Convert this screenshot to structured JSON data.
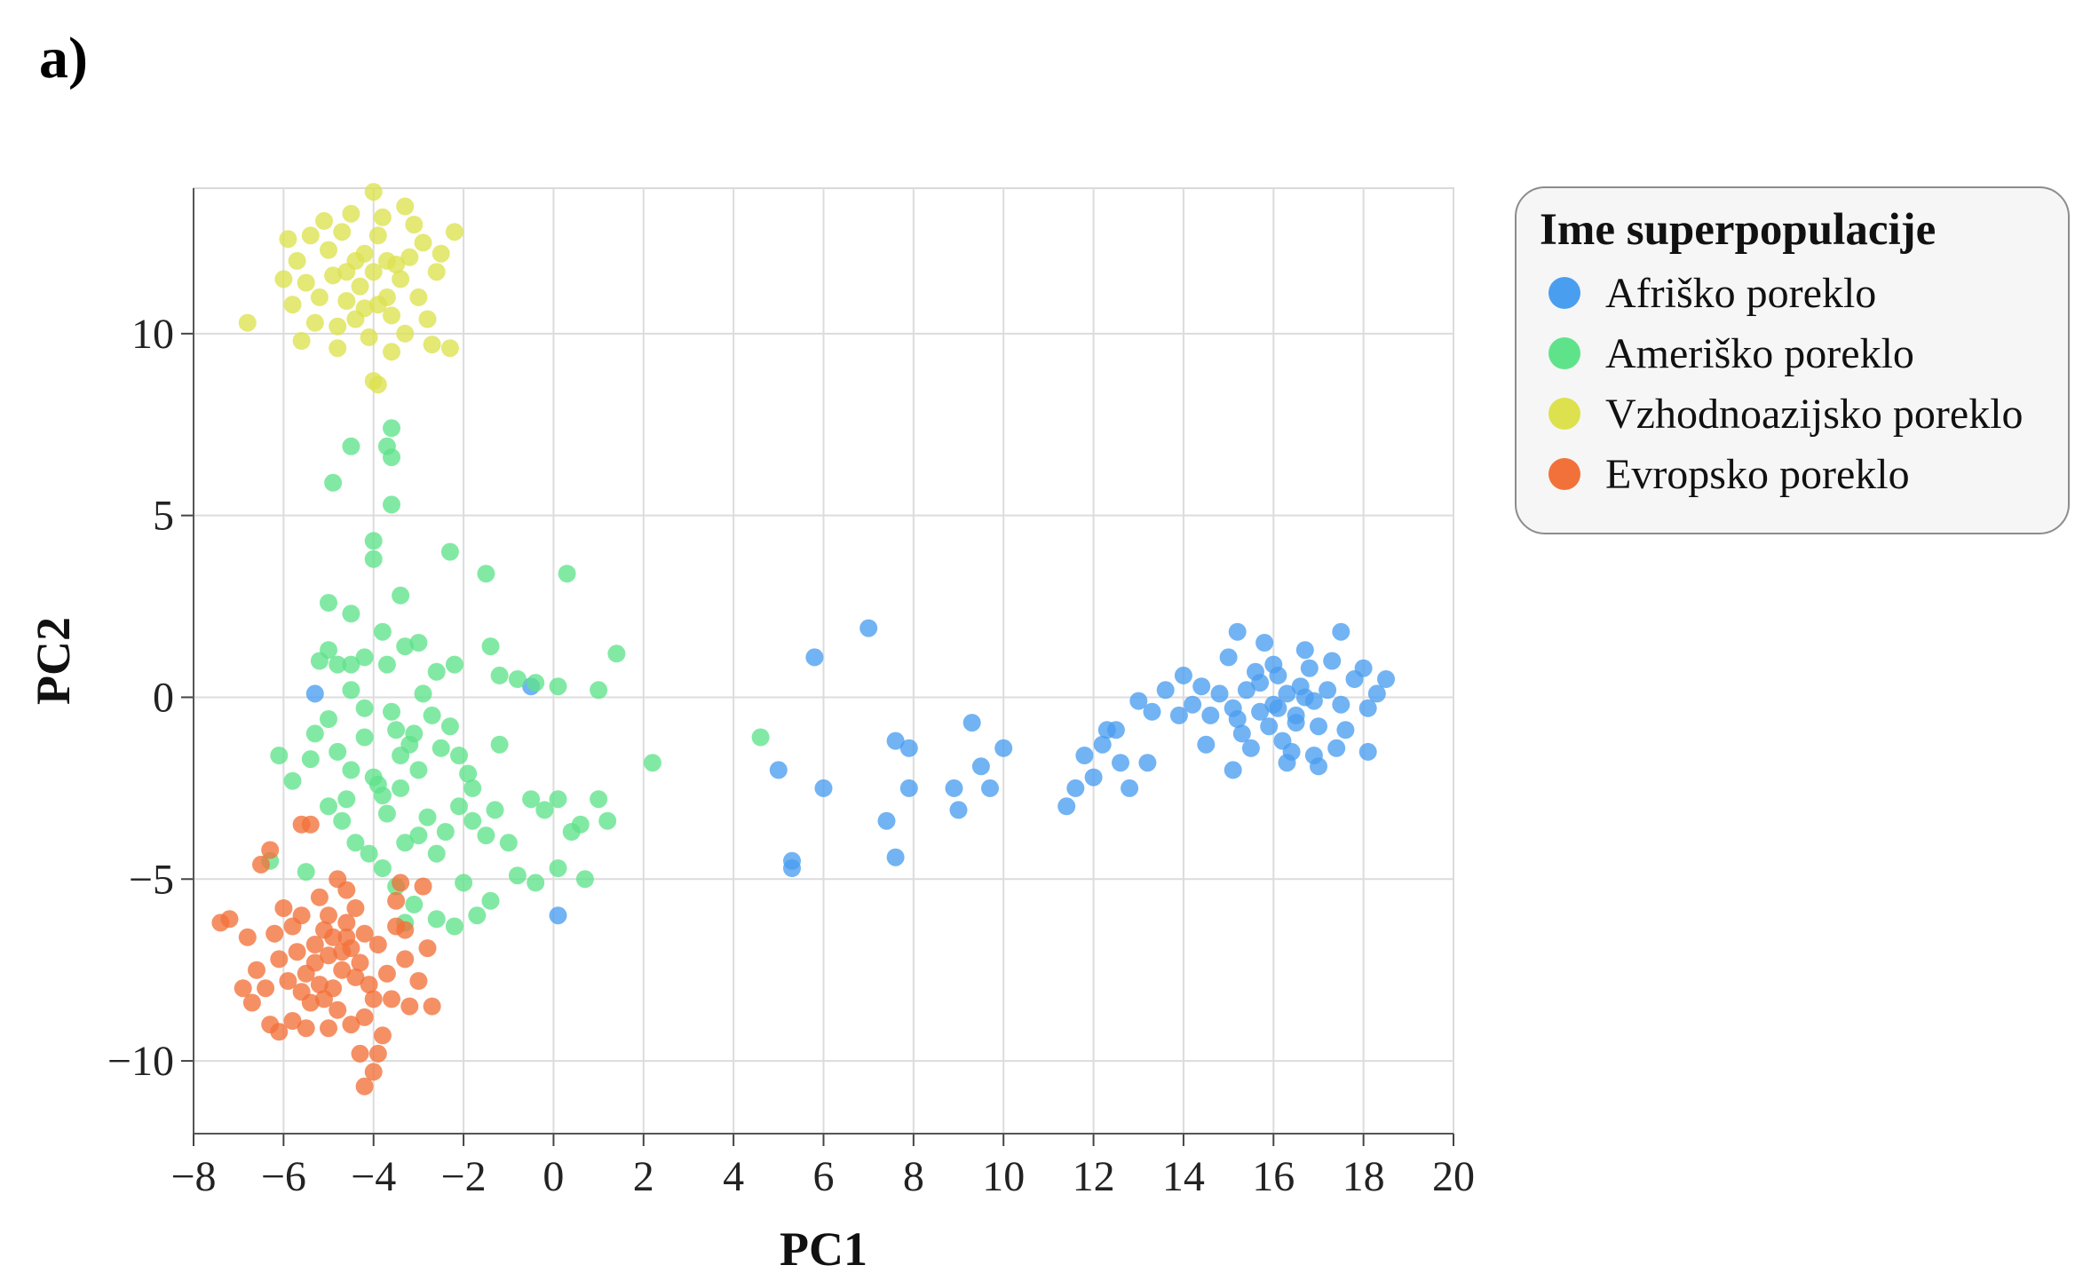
{
  "panel_label": "a)",
  "chart_data": {
    "type": "scatter",
    "title": "",
    "xlabel": "PC1",
    "ylabel": "PC2",
    "xlim": [
      -8,
      20
    ],
    "ylim": [
      -12,
      14
    ],
    "xticks": [
      -8,
      -6,
      -4,
      -2,
      0,
      2,
      4,
      6,
      8,
      10,
      12,
      14,
      16,
      18,
      20
    ],
    "yticks": [
      -10,
      -5,
      0,
      5,
      10
    ],
    "grid": true,
    "legend": {
      "title": "Ime superpopulacije",
      "placement": "right"
    },
    "series": [
      {
        "name": "Afriško poreklo",
        "color": "#4a9ef0",
        "points": [
          [
            16,
            -0.2
          ],
          [
            16.3,
            0.1
          ],
          [
            15.7,
            -0.4
          ],
          [
            16.6,
            0.3
          ],
          [
            15.4,
            0.2
          ],
          [
            16.9,
            -0.1
          ],
          [
            15.1,
            -0.3
          ],
          [
            16.1,
            0.6
          ],
          [
            15.9,
            -0.8
          ],
          [
            16.5,
            -0.5
          ],
          [
            17.2,
            0.2
          ],
          [
            14.8,
            0.1
          ],
          [
            15.6,
            0.7
          ],
          [
            16.8,
            0.8
          ],
          [
            17.5,
            -0.2
          ],
          [
            14.6,
            -0.5
          ],
          [
            15.3,
            -1.0
          ],
          [
            16.2,
            -1.2
          ],
          [
            17.0,
            -0.8
          ],
          [
            17.8,
            0.5
          ],
          [
            14.4,
            0.3
          ],
          [
            15.0,
            1.1
          ],
          [
            16.7,
            1.3
          ],
          [
            17.3,
            1.0
          ],
          [
            18.1,
            -0.3
          ],
          [
            14.2,
            -0.2
          ],
          [
            15.8,
            1.5
          ],
          [
            16.4,
            -1.5
          ],
          [
            17.6,
            -0.9
          ],
          [
            18.3,
            0.1
          ],
          [
            15.2,
            1.8
          ],
          [
            17.5,
            1.8
          ],
          [
            16.0,
            0.9
          ],
          [
            15.5,
            -1.4
          ],
          [
            16.9,
            -1.6
          ],
          [
            14.0,
            0.6
          ],
          [
            18.0,
            0.8
          ],
          [
            18.5,
            0.5
          ],
          [
            14.5,
            -1.3
          ],
          [
            15.1,
            -2.0
          ],
          [
            16.3,
            -1.8
          ],
          [
            17.0,
            -1.9
          ],
          [
            17.4,
            -1.4
          ],
          [
            18.1,
            -1.5
          ],
          [
            13.6,
            0.2
          ],
          [
            13.3,
            -0.4
          ],
          [
            13.9,
            -0.5
          ],
          [
            13.0,
            -0.1
          ],
          [
            12.5,
            -0.9
          ],
          [
            12.2,
            -1.3
          ],
          [
            11.8,
            -1.6
          ],
          [
            12.0,
            -2.2
          ],
          [
            11.6,
            -2.5
          ],
          [
            11.4,
            -3.0
          ],
          [
            12.8,
            -2.5
          ],
          [
            13.2,
            -1.8
          ],
          [
            12.6,
            -1.8
          ],
          [
            12.3,
            -0.9
          ],
          [
            7.0,
            1.9
          ],
          [
            5.8,
            1.1
          ],
          [
            5.0,
            -2.0
          ],
          [
            6.0,
            -2.5
          ],
          [
            5.3,
            -4.5
          ],
          [
            5.3,
            -4.7
          ],
          [
            7.4,
            -3.4
          ],
          [
            7.6,
            -4.4
          ],
          [
            7.6,
            -1.2
          ],
          [
            7.9,
            -1.4
          ],
          [
            7.9,
            -2.5
          ],
          [
            8.9,
            -2.5
          ],
          [
            9.0,
            -3.1
          ],
          [
            9.3,
            -0.7
          ],
          [
            9.5,
            -1.9
          ],
          [
            9.7,
            -2.5
          ],
          [
            10.0,
            -1.4
          ],
          [
            -5.3,
            0.1
          ],
          [
            -0.5,
            0.3
          ],
          [
            0.1,
            -6.0
          ],
          [
            15.7,
            0.4
          ],
          [
            16.5,
            -0.7
          ],
          [
            15.2,
            -0.6
          ],
          [
            16.1,
            -0.3
          ],
          [
            16.7,
            0.0
          ]
        ]
      },
      {
        "name": "Ameriško poreklo",
        "color": "#5fe38a",
        "points": [
          [
            -4.0,
            4.3
          ],
          [
            -4.0,
            3.8
          ],
          [
            -4.5,
            2.3
          ],
          [
            -3.8,
            1.8
          ],
          [
            -5.0,
            2.6
          ],
          [
            -3.4,
            2.8
          ],
          [
            -2.3,
            4.0
          ],
          [
            -1.5,
            3.4
          ],
          [
            0.3,
            3.4
          ],
          [
            -5.0,
            1.3
          ],
          [
            -5.2,
            1.0
          ],
          [
            -4.8,
            0.9
          ],
          [
            -4.5,
            0.9
          ],
          [
            -4.2,
            1.1
          ],
          [
            -3.7,
            0.9
          ],
          [
            -3.3,
            1.4
          ],
          [
            -3.0,
            1.5
          ],
          [
            -2.6,
            0.7
          ],
          [
            -2.2,
            0.9
          ],
          [
            -1.4,
            1.4
          ],
          [
            -1.2,
            0.6
          ],
          [
            -0.8,
            0.5
          ],
          [
            -0.4,
            0.4
          ],
          [
            0.1,
            0.3
          ],
          [
            1.0,
            0.2
          ],
          [
            1.4,
            1.2
          ],
          [
            2.2,
            -1.8
          ],
          [
            -4.5,
            0.2
          ],
          [
            -4.2,
            -0.3
          ],
          [
            -3.6,
            -0.4
          ],
          [
            -3.5,
            -0.9
          ],
          [
            -3.2,
            -1.3
          ],
          [
            -2.9,
            0.1
          ],
          [
            -2.7,
            -0.5
          ],
          [
            -2.3,
            -0.8
          ],
          [
            -2.1,
            -1.6
          ],
          [
            -1.8,
            -2.5
          ],
          [
            -1.2,
            -1.3
          ],
          [
            -5.0,
            -0.6
          ],
          [
            -5.3,
            -1.0
          ],
          [
            -5.4,
            -1.7
          ],
          [
            -4.8,
            -1.5
          ],
          [
            -4.5,
            -2.0
          ],
          [
            -4.0,
            -2.2
          ],
          [
            -3.8,
            -2.7
          ],
          [
            -3.4,
            -1.6
          ],
          [
            -3.0,
            -2.0
          ],
          [
            -2.8,
            -3.3
          ],
          [
            -2.4,
            -3.7
          ],
          [
            -2.1,
            -3.0
          ],
          [
            -1.8,
            -3.4
          ],
          [
            -1.5,
            -3.8
          ],
          [
            -1.3,
            -3.1
          ],
          [
            -1.0,
            -4.0
          ],
          [
            -0.5,
            -2.8
          ],
          [
            -0.2,
            -3.1
          ],
          [
            0.1,
            -2.8
          ],
          [
            0.4,
            -3.7
          ],
          [
            0.6,
            -3.5
          ],
          [
            1.0,
            -2.8
          ],
          [
            1.2,
            -3.4
          ],
          [
            0.7,
            -5.0
          ],
          [
            0.1,
            -4.7
          ],
          [
            -0.4,
            -5.1
          ],
          [
            -0.8,
            -4.9
          ],
          [
            -1.4,
            -5.6
          ],
          [
            -1.7,
            -6.0
          ],
          [
            -2.0,
            -5.1
          ],
          [
            -2.2,
            -6.3
          ],
          [
            -2.6,
            -6.1
          ],
          [
            -3.1,
            -5.7
          ],
          [
            -3.5,
            -5.2
          ],
          [
            -3.8,
            -4.7
          ],
          [
            -4.1,
            -4.3
          ],
          [
            -4.4,
            -4.0
          ],
          [
            -4.7,
            -3.4
          ],
          [
            -5.0,
            -3.0
          ],
          [
            -5.8,
            -2.3
          ],
          [
            -6.1,
            -1.6
          ],
          [
            -6.3,
            -4.5
          ],
          [
            -5.5,
            -4.8
          ],
          [
            -3.3,
            -4.0
          ],
          [
            -3.0,
            -3.8
          ],
          [
            -2.6,
            -4.3
          ],
          [
            -4.9,
            5.9
          ],
          [
            -4.5,
            6.9
          ],
          [
            -3.7,
            6.9
          ],
          [
            -3.6,
            7.4
          ],
          [
            -3.6,
            6.6
          ],
          [
            -3.6,
            5.3
          ],
          [
            4.6,
            -1.1
          ],
          [
            -4.6,
            -2.8
          ],
          [
            -3.9,
            -2.4
          ],
          [
            -3.4,
            -2.5
          ],
          [
            -4.2,
            -1.1
          ],
          [
            -3.1,
            -1.0
          ],
          [
            -1.9,
            -2.1
          ],
          [
            -2.5,
            -1.4
          ],
          [
            -3.7,
            -3.2
          ],
          [
            -3.3,
            -6.2
          ]
        ]
      },
      {
        "name": "Vzhodnoazijsko poreklo",
        "color": "#dde14e",
        "points": [
          [
            -4.3,
            11.3
          ],
          [
            -4.0,
            11.7
          ],
          [
            -4.6,
            10.9
          ],
          [
            -3.7,
            11.0
          ],
          [
            -4.9,
            11.6
          ],
          [
            -4.2,
            12.2
          ],
          [
            -3.4,
            11.5
          ],
          [
            -5.2,
            11.0
          ],
          [
            -4.4,
            10.4
          ],
          [
            -3.6,
            10.5
          ],
          [
            -5.0,
            12.3
          ],
          [
            -3.2,
            12.1
          ],
          [
            -4.7,
            12.8
          ],
          [
            -3.9,
            12.7
          ],
          [
            -5.5,
            11.4
          ],
          [
            -3.0,
            11.0
          ],
          [
            -5.3,
            10.3
          ],
          [
            -4.1,
            9.9
          ],
          [
            -3.3,
            10.0
          ],
          [
            -5.7,
            12.0
          ],
          [
            -2.9,
            12.5
          ],
          [
            -4.5,
            13.3
          ],
          [
            -3.8,
            13.2
          ],
          [
            -5.4,
            12.7
          ],
          [
            -3.1,
            13.0
          ],
          [
            -5.8,
            10.8
          ],
          [
            -2.8,
            10.4
          ],
          [
            -4.8,
            9.6
          ],
          [
            -3.6,
            9.5
          ],
          [
            -6.0,
            11.5
          ],
          [
            -2.6,
            11.7
          ],
          [
            -4.0,
            13.9
          ],
          [
            -2.5,
            12.2
          ],
          [
            -5.6,
            9.8
          ],
          [
            -2.7,
            9.7
          ],
          [
            -6.8,
            10.3
          ],
          [
            -4.0,
            8.7
          ],
          [
            -3.9,
            8.6
          ],
          [
            -2.3,
            9.6
          ],
          [
            -3.3,
            13.5
          ],
          [
            -5.1,
            13.1
          ],
          [
            -2.2,
            12.8
          ],
          [
            -5.9,
            12.6
          ],
          [
            -4.6,
            11.7
          ],
          [
            -3.7,
            12.0
          ],
          [
            -4.2,
            10.7
          ],
          [
            -3.5,
            11.9
          ],
          [
            -4.8,
            10.2
          ],
          [
            -4.4,
            12.0
          ],
          [
            -3.9,
            10.8
          ]
        ]
      },
      {
        "name": "Evropsko poreklo",
        "color": "#f2713a",
        "points": [
          [
            -5.0,
            -7.1
          ],
          [
            -4.7,
            -7.5
          ],
          [
            -5.3,
            -6.8
          ],
          [
            -4.5,
            -6.9
          ],
          [
            -5.5,
            -7.6
          ],
          [
            -4.9,
            -8.0
          ],
          [
            -4.3,
            -7.3
          ],
          [
            -5.7,
            -7.0
          ],
          [
            -5.1,
            -6.4
          ],
          [
            -4.6,
            -6.2
          ],
          [
            -5.9,
            -7.8
          ],
          [
            -4.1,
            -7.9
          ],
          [
            -5.4,
            -8.4
          ],
          [
            -4.8,
            -8.6
          ],
          [
            -6.1,
            -7.2
          ],
          [
            -3.9,
            -6.8
          ],
          [
            -5.6,
            -6.0
          ],
          [
            -4.4,
            -5.8
          ],
          [
            -6.2,
            -6.5
          ],
          [
            -3.7,
            -7.6
          ],
          [
            -5.2,
            -5.5
          ],
          [
            -4.6,
            -5.3
          ],
          [
            -6.4,
            -8.0
          ],
          [
            -3.6,
            -8.3
          ],
          [
            -5.8,
            -8.9
          ],
          [
            -4.2,
            -8.8
          ],
          [
            -6.0,
            -5.8
          ],
          [
            -3.5,
            -6.3
          ],
          [
            -5.0,
            -9.1
          ],
          [
            -4.5,
            -9.0
          ],
          [
            -6.6,
            -7.5
          ],
          [
            -3.3,
            -7.2
          ],
          [
            -6.3,
            -9.0
          ],
          [
            -3.8,
            -9.3
          ],
          [
            -6.8,
            -6.6
          ],
          [
            -3.2,
            -8.5
          ],
          [
            -6.5,
            -4.6
          ],
          [
            -5.6,
            -3.5
          ],
          [
            -5.4,
            -3.5
          ],
          [
            -6.3,
            -4.2
          ],
          [
            -4.8,
            -5.0
          ],
          [
            -3.3,
            -6.4
          ],
          [
            -2.8,
            -6.9
          ],
          [
            -2.7,
            -8.5
          ],
          [
            -3.4,
            -5.1
          ],
          [
            -3.9,
            -9.8
          ],
          [
            -4.3,
            -9.8
          ],
          [
            -4.0,
            -10.3
          ],
          [
            -7.2,
            -6.1
          ],
          [
            -7.4,
            -6.2
          ],
          [
            -6.9,
            -8.0
          ],
          [
            -6.7,
            -8.4
          ],
          [
            -5.5,
            -9.1
          ],
          [
            -4.6,
            -6.6
          ],
          [
            -5.2,
            -7.9
          ],
          [
            -4.2,
            -6.5
          ],
          [
            -5.8,
            -6.3
          ],
          [
            -4.0,
            -8.3
          ],
          [
            -5.0,
            -6.0
          ],
          [
            -3.5,
            -5.6
          ],
          [
            -2.9,
            -5.2
          ],
          [
            -4.2,
            -10.7
          ],
          [
            -6.1,
            -9.2
          ],
          [
            -3.0,
            -7.8
          ],
          [
            -5.3,
            -7.3
          ],
          [
            -4.7,
            -7.0
          ],
          [
            -5.1,
            -8.3
          ],
          [
            -4.4,
            -7.7
          ],
          [
            -5.6,
            -8.1
          ],
          [
            -4.9,
            -6.6
          ]
        ]
      }
    ]
  }
}
